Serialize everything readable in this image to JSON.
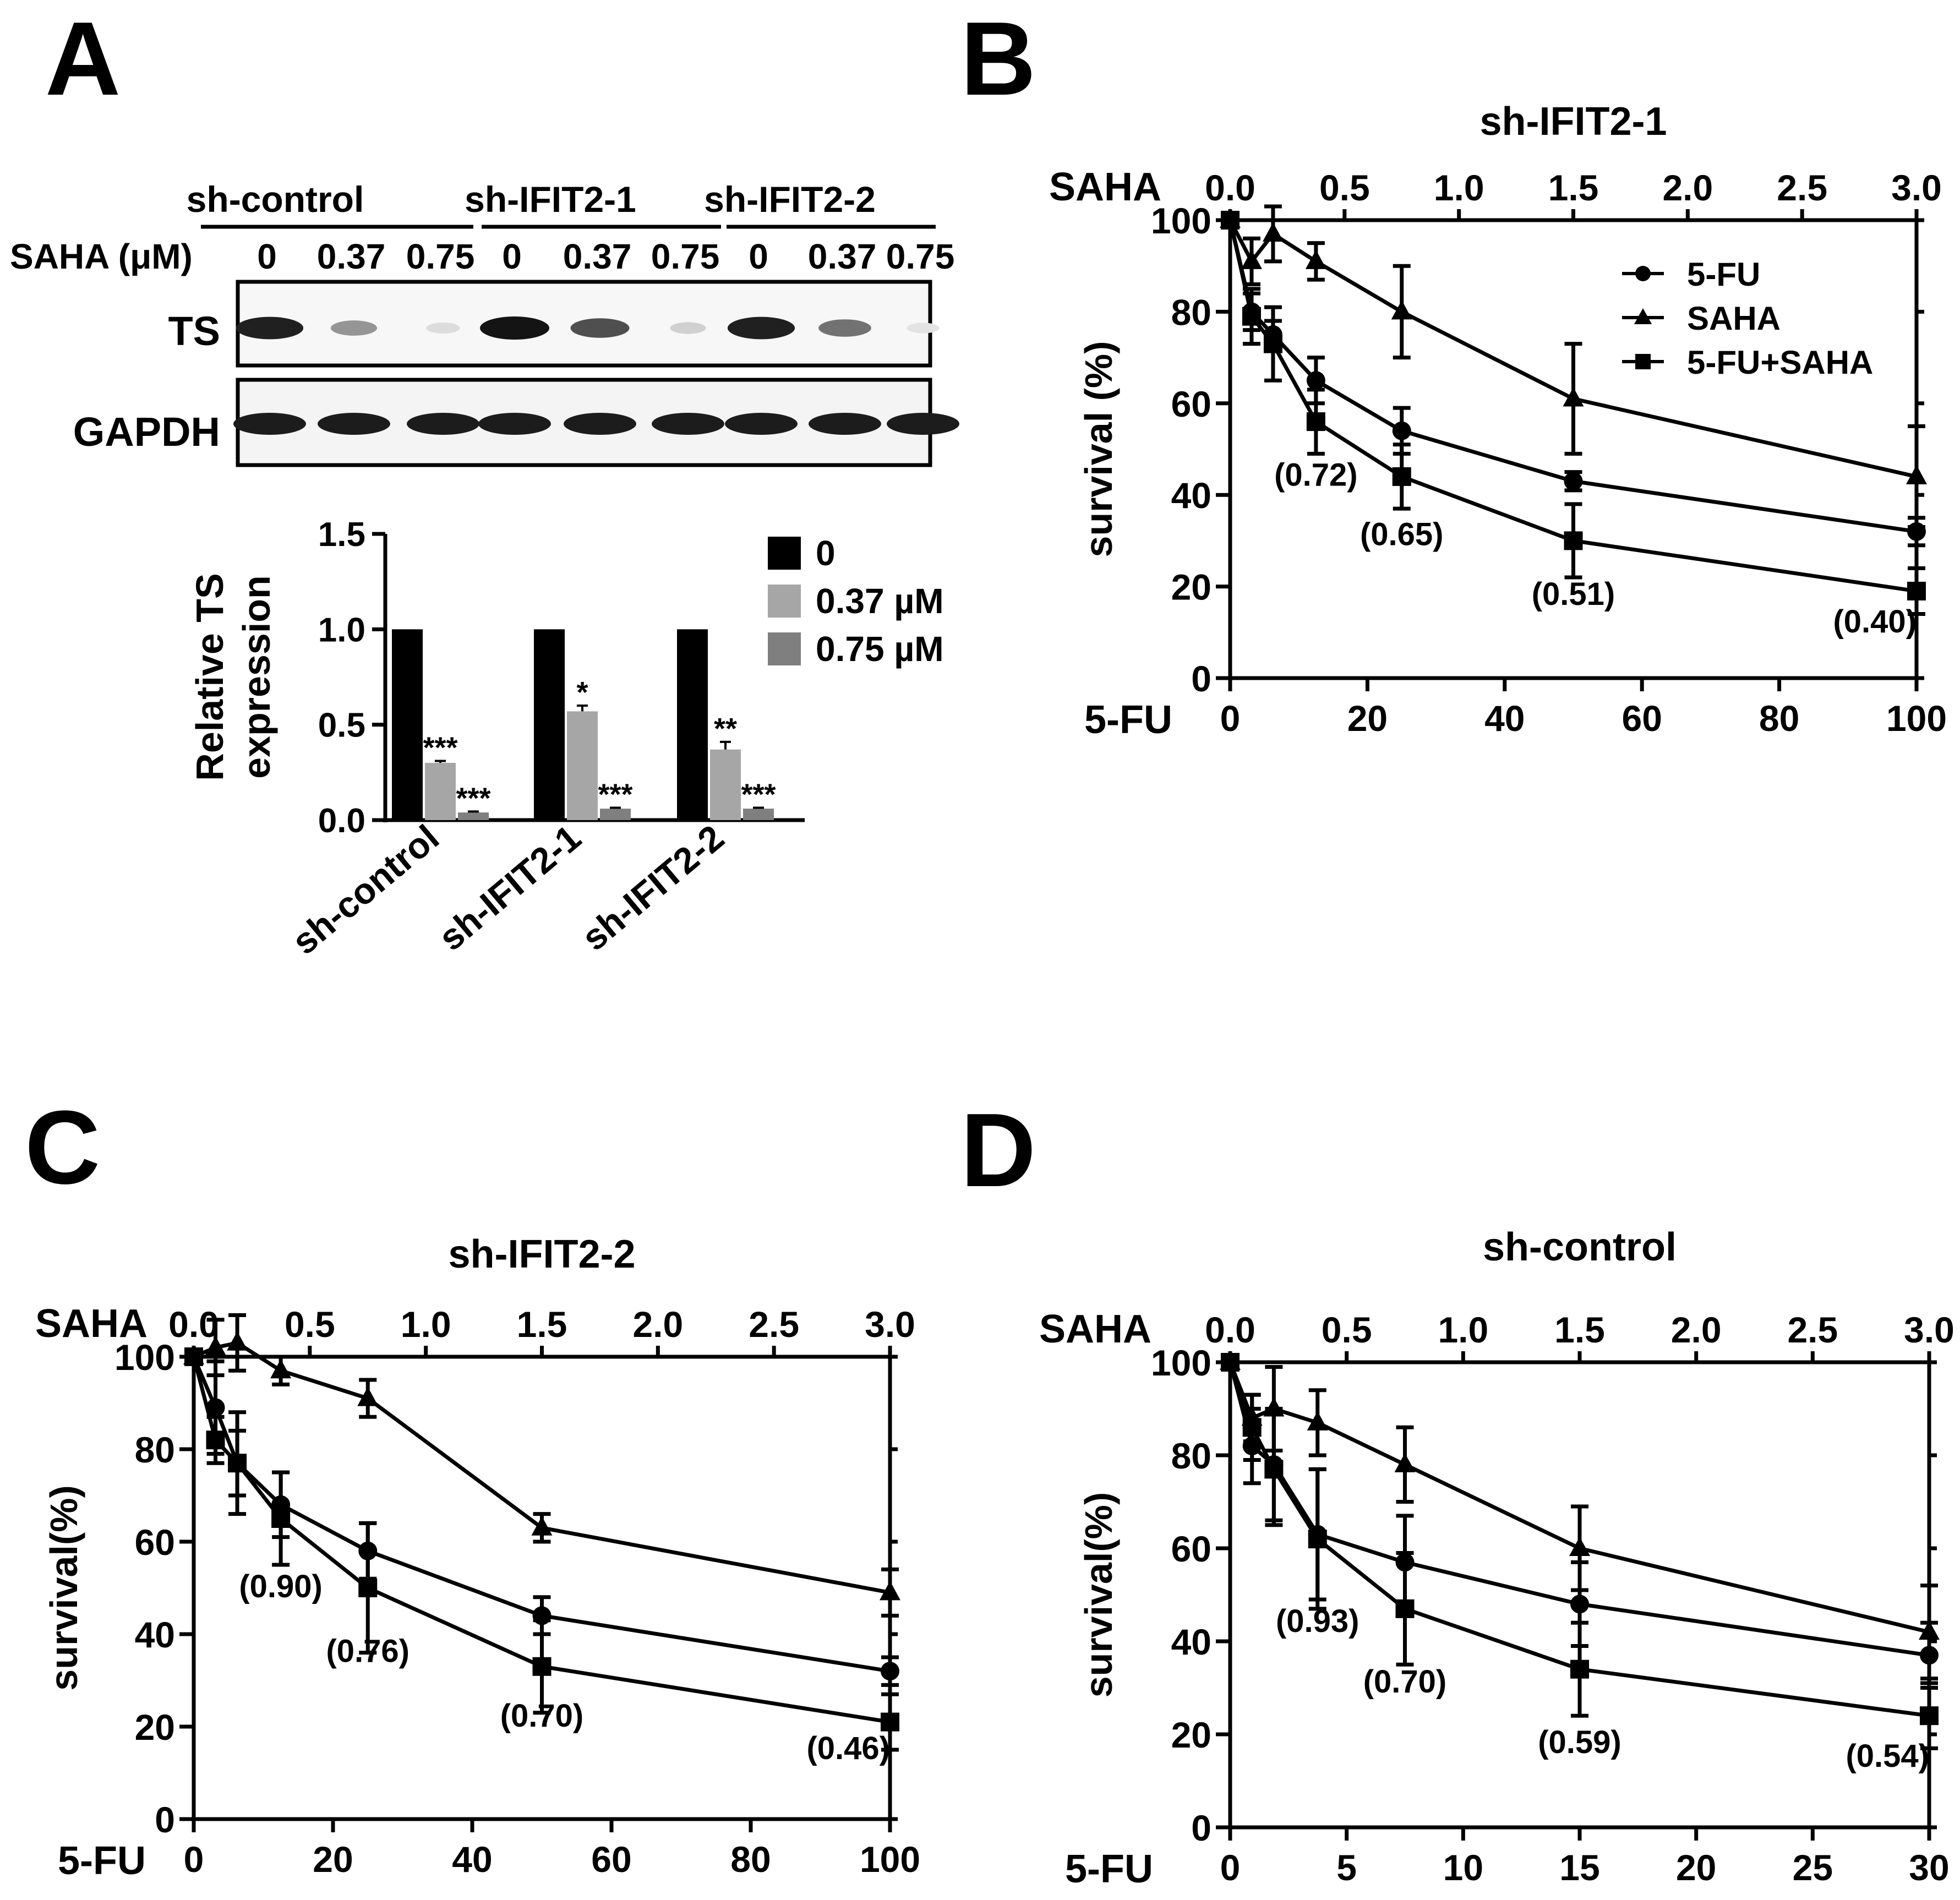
{
  "panelA": {
    "letter": "A",
    "blot": {
      "groups": [
        "sh-control",
        "sh-IFIT2-1",
        "sh-IFIT2-2"
      ],
      "saha_label": "SAHA (μM)",
      "lanes": [
        "0",
        "0.37",
        "0.75",
        "0",
        "0.37",
        "0.75",
        "0",
        "0.37",
        "0.75"
      ],
      "rows": [
        "TS",
        "GAPDH"
      ],
      "ts_band_intensity": [
        0.95,
        0.45,
        0.15,
        1.0,
        0.75,
        0.2,
        0.95,
        0.6,
        0.12
      ]
    }
  },
  "chart_data": [
    {
      "panel": "A",
      "type": "bar",
      "ylabel": [
        "Relative TS",
        "expression"
      ],
      "ylim": [
        0,
        1.5
      ],
      "yticks": [
        "0.0",
        "0.5",
        "1.0",
        "1.5"
      ],
      "categories": [
        "sh-control",
        "sh-IFIT2-1",
        "sh-IFIT2-2"
      ],
      "series": [
        {
          "name": "0",
          "color": "#000000",
          "values": [
            1.0,
            1.0,
            1.0
          ],
          "errors": [
            0,
            0,
            0
          ],
          "sig": [
            "",
            "",
            ""
          ]
        },
        {
          "name": "0.37 µM",
          "color": "#a6a6a6",
          "values": [
            0.3,
            0.57,
            0.37
          ],
          "errors": [
            0.01,
            0.03,
            0.04
          ],
          "sig": [
            "***",
            "*",
            "**"
          ]
        },
        {
          "name": "0.75 µM",
          "color": "#7f7f7f",
          "values": [
            0.04,
            0.06,
            0.06
          ],
          "errors": [
            0.005,
            0.005,
            0.005
          ],
          "sig": [
            "***",
            "***",
            "***"
          ]
        }
      ],
      "legend": "top-right"
    },
    {
      "panel": "B",
      "type": "line",
      "title": "sh-IFIT2-1",
      "letter": "B",
      "xlabel": "5-FU",
      "xlabel_top": "SAHA",
      "ylabel": "survival (%)",
      "xlim": [
        0,
        100
      ],
      "ylim": [
        0,
        100
      ],
      "xticks": [
        "0",
        "20",
        "40",
        "60",
        "80",
        "100"
      ],
      "top_ticks": [
        "0.0",
        "0.5",
        "1.0",
        "1.5",
        "2.0",
        "2.5",
        "3.0"
      ],
      "top_max": 3,
      "yticks": [
        "0",
        "20",
        "40",
        "60",
        "80",
        "100"
      ],
      "x": [
        0,
        3.125,
        6.25,
        12.5,
        25,
        50,
        100
      ],
      "series": [
        {
          "name": "5-FU",
          "marker": "circle",
          "values": [
            100,
            80,
            75,
            65,
            54,
            43,
            32
          ],
          "errors": [
            0,
            4,
            3,
            5,
            5,
            2,
            3
          ]
        },
        {
          "name": "SAHA",
          "marker": "triangle",
          "values": [
            100,
            91,
            97,
            91,
            80,
            61,
            44
          ],
          "errors": [
            0,
            5,
            6,
            4,
            10,
            12,
            11
          ]
        },
        {
          "name": "5-FU+SAHA",
          "marker": "square",
          "values": [
            100,
            79,
            73,
            56,
            44,
            30,
            19
          ],
          "errors": [
            0,
            6,
            8,
            7,
            7,
            8,
            5
          ]
        }
      ],
      "ci_labels": [
        {
          "x": 12.5,
          "y": 42,
          "text": "(0.72)"
        },
        {
          "x": 25,
          "y": 29,
          "text": "(0.65)"
        },
        {
          "x": 50,
          "y": 16,
          "text": "(0.51)"
        },
        {
          "x": 100,
          "y": 10,
          "text": "(0.40)",
          "anchor": "end"
        }
      ],
      "legend": "top-right"
    },
    {
      "panel": "C",
      "type": "line",
      "title": "sh-IFIT2-2",
      "letter": "C",
      "xlabel": "5-FU",
      "xlabel_top": "SAHA",
      "ylabel": "survival(%)",
      "xlim": [
        0,
        100
      ],
      "ylim": [
        0,
        100
      ],
      "xticks": [
        "0",
        "20",
        "40",
        "60",
        "80",
        "100"
      ],
      "top_ticks": [
        "0.0",
        "0.5",
        "1.0",
        "1.5",
        "2.0",
        "2.5",
        "3.0"
      ],
      "top_max": 3,
      "yticks": [
        "0",
        "20",
        "40",
        "60",
        "80",
        "100"
      ],
      "x": [
        0,
        3.125,
        6.25,
        12.5,
        25,
        50,
        100
      ],
      "series": [
        {
          "name": "5-FU",
          "marker": "circle",
          "values": [
            100,
            89,
            77,
            68,
            58,
            44,
            32
          ],
          "errors": [
            0,
            10,
            7,
            7,
            6,
            4,
            3
          ]
        },
        {
          "name": "SAHA",
          "marker": "triangle",
          "values": [
            100,
            102,
            103,
            97,
            91,
            63,
            49
          ],
          "errors": [
            0,
            6,
            6,
            3,
            4,
            3,
            5
          ]
        },
        {
          "name": "5-FU+SAHA",
          "marker": "square",
          "values": [
            100,
            82,
            77,
            65,
            50,
            33,
            21
          ],
          "errors": [
            0,
            5,
            11,
            10,
            14,
            10,
            6
          ]
        }
      ],
      "ci_labels": [
        {
          "x": 12.5,
          "y": 48,
          "text": "(0.90)"
        },
        {
          "x": 25,
          "y": 34,
          "text": "(0.76)"
        },
        {
          "x": 50,
          "y": 20,
          "text": "(0.70)"
        },
        {
          "x": 100,
          "y": 13,
          "text": "(0.46)",
          "anchor": "end"
        }
      ]
    },
    {
      "panel": "D",
      "type": "line",
      "title": "sh-control",
      "letter": "D",
      "xlabel": "5-FU",
      "xlabel_top": "SAHA",
      "ylabel": "survival(%)",
      "xlim": [
        0,
        30
      ],
      "ylim": [
        0,
        100
      ],
      "xticks": [
        "0",
        "5",
        "10",
        "15",
        "20",
        "25",
        "30"
      ],
      "top_ticks": [
        "0.0",
        "0.5",
        "1.0",
        "1.5",
        "2.0",
        "2.5",
        "3.0"
      ],
      "top_max": 3,
      "yticks": [
        "0",
        "20",
        "40",
        "60",
        "80",
        "100"
      ],
      "x": [
        0,
        0.9375,
        1.875,
        3.75,
        7.5,
        15,
        30
      ],
      "series": [
        {
          "name": "5-FU",
          "marker": "circle",
          "values": [
            100,
            82,
            78,
            63,
            57,
            48,
            37
          ],
          "errors": [
            0,
            8,
            12,
            14,
            10,
            9,
            7
          ]
        },
        {
          "name": "SAHA",
          "marker": "triangle",
          "values": [
            100,
            88,
            90,
            87,
            78,
            60,
            42
          ],
          "errors": [
            0,
            5,
            9,
            7,
            8,
            9,
            10
          ]
        },
        {
          "name": "5-FU+SAHA",
          "marker": "square",
          "values": [
            100,
            86,
            77,
            62,
            47,
            34,
            24
          ],
          "errors": [
            0,
            7,
            12,
            15,
            12,
            10,
            7
          ]
        }
      ],
      "ci_labels": [
        {
          "x": 3.75,
          "y": 42,
          "text": "(0.93)"
        },
        {
          "x": 7.5,
          "y": 29,
          "text": "(0.70)"
        },
        {
          "x": 15,
          "y": 16,
          "text": "(0.59)"
        },
        {
          "x": 30,
          "y": 13,
          "text": "(0.54)",
          "anchor": "end"
        }
      ]
    }
  ]
}
